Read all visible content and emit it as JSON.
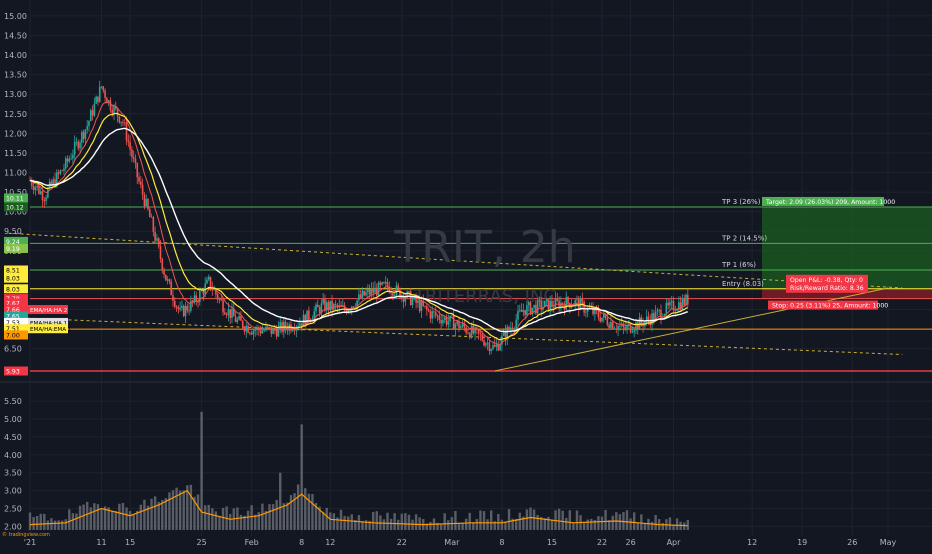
{
  "watermark": {
    "symbol": "TRIT, 2h",
    "name": "TRITERRAS, INC"
  },
  "colors": {
    "background": "#131722",
    "grid": "#1e222d",
    "axis_text": "#b2b5be",
    "candle_up": "#26a69a",
    "candle_down": "#ef5350",
    "target_zone": "#1b5e20",
    "stop_zone": "#8b1f25",
    "ema_white": "#ffffff",
    "ema_yellow": "#ffeb3b",
    "ema_red": "#ef5350",
    "volume_bar": "#6b6f78",
    "volume_ma": "#ff9800"
  },
  "chart_data": {
    "type": "candlestick",
    "symbol": "TRIT",
    "interval": "2h",
    "ylim": [
      5.7,
      15.1
    ],
    "yticks": [
      6.5,
      7.0,
      7.5,
      8.0,
      8.5,
      9.0,
      9.5,
      10.0,
      10.5,
      11.0,
      11.5,
      12.0,
      12.5,
      13.0,
      13.5,
      14.0,
      14.5,
      15.0
    ],
    "volume_ticks": [
      2.0,
      2.5,
      3.0,
      3.5,
      4.0,
      4.5,
      5.0,
      5.5
    ],
    "volume_ylim": [
      1.9,
      5.95
    ],
    "xticks": [
      {
        "label": "'21",
        "day": 0
      },
      {
        "label": "11",
        "day": 10
      },
      {
        "label": "15",
        "day": 14
      },
      {
        "label": "25",
        "day": 24
      },
      {
        "label": "Feb",
        "day": 31
      },
      {
        "label": "8",
        "day": 38
      },
      {
        "label": "12",
        "day": 42
      },
      {
        "label": "22",
        "day": 52
      },
      {
        "label": "Mar",
        "day": 59
      },
      {
        "label": "8",
        "day": 66
      },
      {
        "label": "15",
        "day": 73
      },
      {
        "label": "22",
        "day": 80
      },
      {
        "label": "26",
        "day": 84
      },
      {
        "label": "Apr",
        "day": 90
      },
      {
        "label": "12",
        "day": 101
      },
      {
        "label": "19",
        "day": 108
      },
      {
        "label": "26",
        "day": 115
      },
      {
        "label": "May",
        "day": 120
      }
    ],
    "price_path": [
      {
        "day": 0,
        "price": 10.8
      },
      {
        "day": 2,
        "price": 10.4
      },
      {
        "day": 5,
        "price": 11.2
      },
      {
        "day": 8,
        "price": 12.2
      },
      {
        "day": 10,
        "price": 13.2
      },
      {
        "day": 11,
        "price": 12.8
      },
      {
        "day": 13,
        "price": 12.3
      },
      {
        "day": 15,
        "price": 10.9
      },
      {
        "day": 17,
        "price": 9.7
      },
      {
        "day": 19,
        "price": 8.3
      },
      {
        "day": 21,
        "price": 7.4
      },
      {
        "day": 23,
        "price": 7.7
      },
      {
        "day": 25,
        "price": 8.2
      },
      {
        "day": 27,
        "price": 7.6
      },
      {
        "day": 29,
        "price": 7.2
      },
      {
        "day": 31,
        "price": 7.0
      },
      {
        "day": 34,
        "price": 6.95
      },
      {
        "day": 38,
        "price": 7.2
      },
      {
        "day": 41,
        "price": 7.6
      },
      {
        "day": 44,
        "price": 7.5
      },
      {
        "day": 47,
        "price": 7.9
      },
      {
        "day": 50,
        "price": 8.1
      },
      {
        "day": 53,
        "price": 7.8
      },
      {
        "day": 56,
        "price": 7.4
      },
      {
        "day": 60,
        "price": 7.1
      },
      {
        "day": 63,
        "price": 6.8
      },
      {
        "day": 65,
        "price": 6.5
      },
      {
        "day": 67,
        "price": 7.0
      },
      {
        "day": 69,
        "price": 7.5
      },
      {
        "day": 72,
        "price": 7.6
      },
      {
        "day": 76,
        "price": 7.7
      },
      {
        "day": 80,
        "price": 7.3
      },
      {
        "day": 83,
        "price": 7.0
      },
      {
        "day": 86,
        "price": 7.2
      },
      {
        "day": 89,
        "price": 7.5
      },
      {
        "day": 92,
        "price": 7.75
      }
    ],
    "horizontal_levels": [
      {
        "name": "TP 3 (26%)",
        "price": 10.12,
        "color": "#4caf50",
        "label": "TP 3 (26%)"
      },
      {
        "name": "TP 2 (14.5%)",
        "price": 9.19,
        "color": "#4caf50",
        "label": "TP 2 (14.5%)"
      },
      {
        "name": "TP 1 (6%)",
        "price": 8.51,
        "color": "#4caf50",
        "label": "TP 1 (6%)"
      },
      {
        "name": "Entry (8.03)",
        "price": 8.03,
        "color": "#ffeb3b",
        "label": "Entry (8.03)"
      },
      {
        "name": "Stop",
        "price": 7.78,
        "color": "#ef5350",
        "label": ""
      },
      {
        "name": "EMA low",
        "price": 7.0,
        "color": "#ff9800",
        "label": ""
      },
      {
        "name": "Support",
        "price": 5.93,
        "color": "#f23645",
        "label": ""
      }
    ],
    "trendlines": [
      {
        "name": "upper-dashed",
        "from": [
          -3,
          9.45
        ],
        "to": [
          122,
          8.05
        ],
        "color": "#c9b037",
        "dashed": true
      },
      {
        "name": "lower-dashed",
        "from": [
          -3,
          7.3
        ],
        "to": [
          122,
          6.35
        ],
        "color": "#c9b037",
        "dashed": true
      },
      {
        "name": "rising-support",
        "from": [
          65,
          5.93
        ],
        "to": [
          120,
          8.05
        ],
        "color": "#c9b037",
        "dashed": false
      }
    ],
    "price_labels": [
      {
        "text": "10.11",
        "price": 10.35,
        "bg": "#4caf50",
        "fg": "#ffffff"
      },
      {
        "text": "10.12",
        "price": 10.12,
        "bg": "#1b5e20",
        "fg": "#ffffff"
      },
      {
        "text": "9.24",
        "price": 9.24,
        "bg": "#4caf50",
        "fg": "#ffffff"
      },
      {
        "text": "9.19",
        "price": 9.06,
        "bg": "#8bc34a",
        "fg": "#ffffff"
      },
      {
        "text": "8.51",
        "price": 8.51,
        "bg": "#ffeb3b",
        "fg": "#000000"
      },
      {
        "text": "8.03",
        "price": 8.3,
        "bg": "#ffeb3b",
        "fg": "#000000"
      },
      {
        "text": "8.03",
        "price": 8.03,
        "bg": "#ffeb3b",
        "fg": "#000000"
      },
      {
        "text": "7.78",
        "price": 7.78,
        "bg": "#f23645",
        "fg": "#ffffff"
      },
      {
        "text": "7.67",
        "price": 7.67,
        "bg": "#f23645",
        "fg": "#ffffff"
      },
      {
        "text": "7.66",
        "price": 7.5,
        "bg": "#f23645",
        "fg": "#ffffff",
        "tag": "EMA/HA:HA 2"
      },
      {
        "text": "7.65",
        "price": 7.33,
        "bg": "#26a69a",
        "fg": "#ffffff"
      },
      {
        "text": "7.53",
        "price": 7.17,
        "bg": "#ffffff",
        "fg": "#000000",
        "tag": "EMA/HA:HA 1"
      },
      {
        "text": "7.51",
        "price": 7.01,
        "bg": "#ffeb3b",
        "fg": "#000000",
        "tag": "EMA/HA:EMA 1"
      },
      {
        "text": "7.00",
        "price": 6.85,
        "bg": "#ff9800",
        "fg": "#000000"
      },
      {
        "text": "5.93",
        "price": 5.93,
        "bg": "#f23645",
        "fg": "#ffffff"
      }
    ],
    "position_tool": {
      "target_label": "Target: 2.09 (26.03%) 209, Amount: 1000",
      "stop_label": "Stop: 0.25 (3.11%) 25, Amount: 1000",
      "pnl_line1": "Open P&L: -0.38, Qty: 0",
      "pnl_line2": "Risk/Reward Ratio: 8.36"
    },
    "volume_path": [
      {
        "day": 0,
        "v": 2.05
      },
      {
        "day": 5,
        "v": 2.1
      },
      {
        "day": 10,
        "v": 2.5
      },
      {
        "day": 14,
        "v": 2.3
      },
      {
        "day": 18,
        "v": 2.6
      },
      {
        "day": 22,
        "v": 3.0
      },
      {
        "day": 24,
        "v": 2.4
      },
      {
        "day": 28,
        "v": 2.2
      },
      {
        "day": 32,
        "v": 2.3
      },
      {
        "day": 36,
        "v": 2.6
      },
      {
        "day": 38,
        "v": 2.9
      },
      {
        "day": 42,
        "v": 2.2
      },
      {
        "day": 48,
        "v": 2.1
      },
      {
        "day": 55,
        "v": 2.05
      },
      {
        "day": 62,
        "v": 2.1
      },
      {
        "day": 66,
        "v": 2.1
      },
      {
        "day": 70,
        "v": 2.25
      },
      {
        "day": 76,
        "v": 2.1
      },
      {
        "day": 82,
        "v": 2.15
      },
      {
        "day": 88,
        "v": 2.05
      },
      {
        "day": 92,
        "v": 2.02
      }
    ],
    "volume_spikes": [
      {
        "day": 24,
        "v": 5.2
      },
      {
        "day": 38,
        "v": 4.85
      },
      {
        "day": 35,
        "v": 3.5
      },
      {
        "day": 21,
        "v": 3.0
      },
      {
        "day": 22,
        "v": 3.15
      }
    ],
    "footer_text": "© tradingview.com"
  }
}
